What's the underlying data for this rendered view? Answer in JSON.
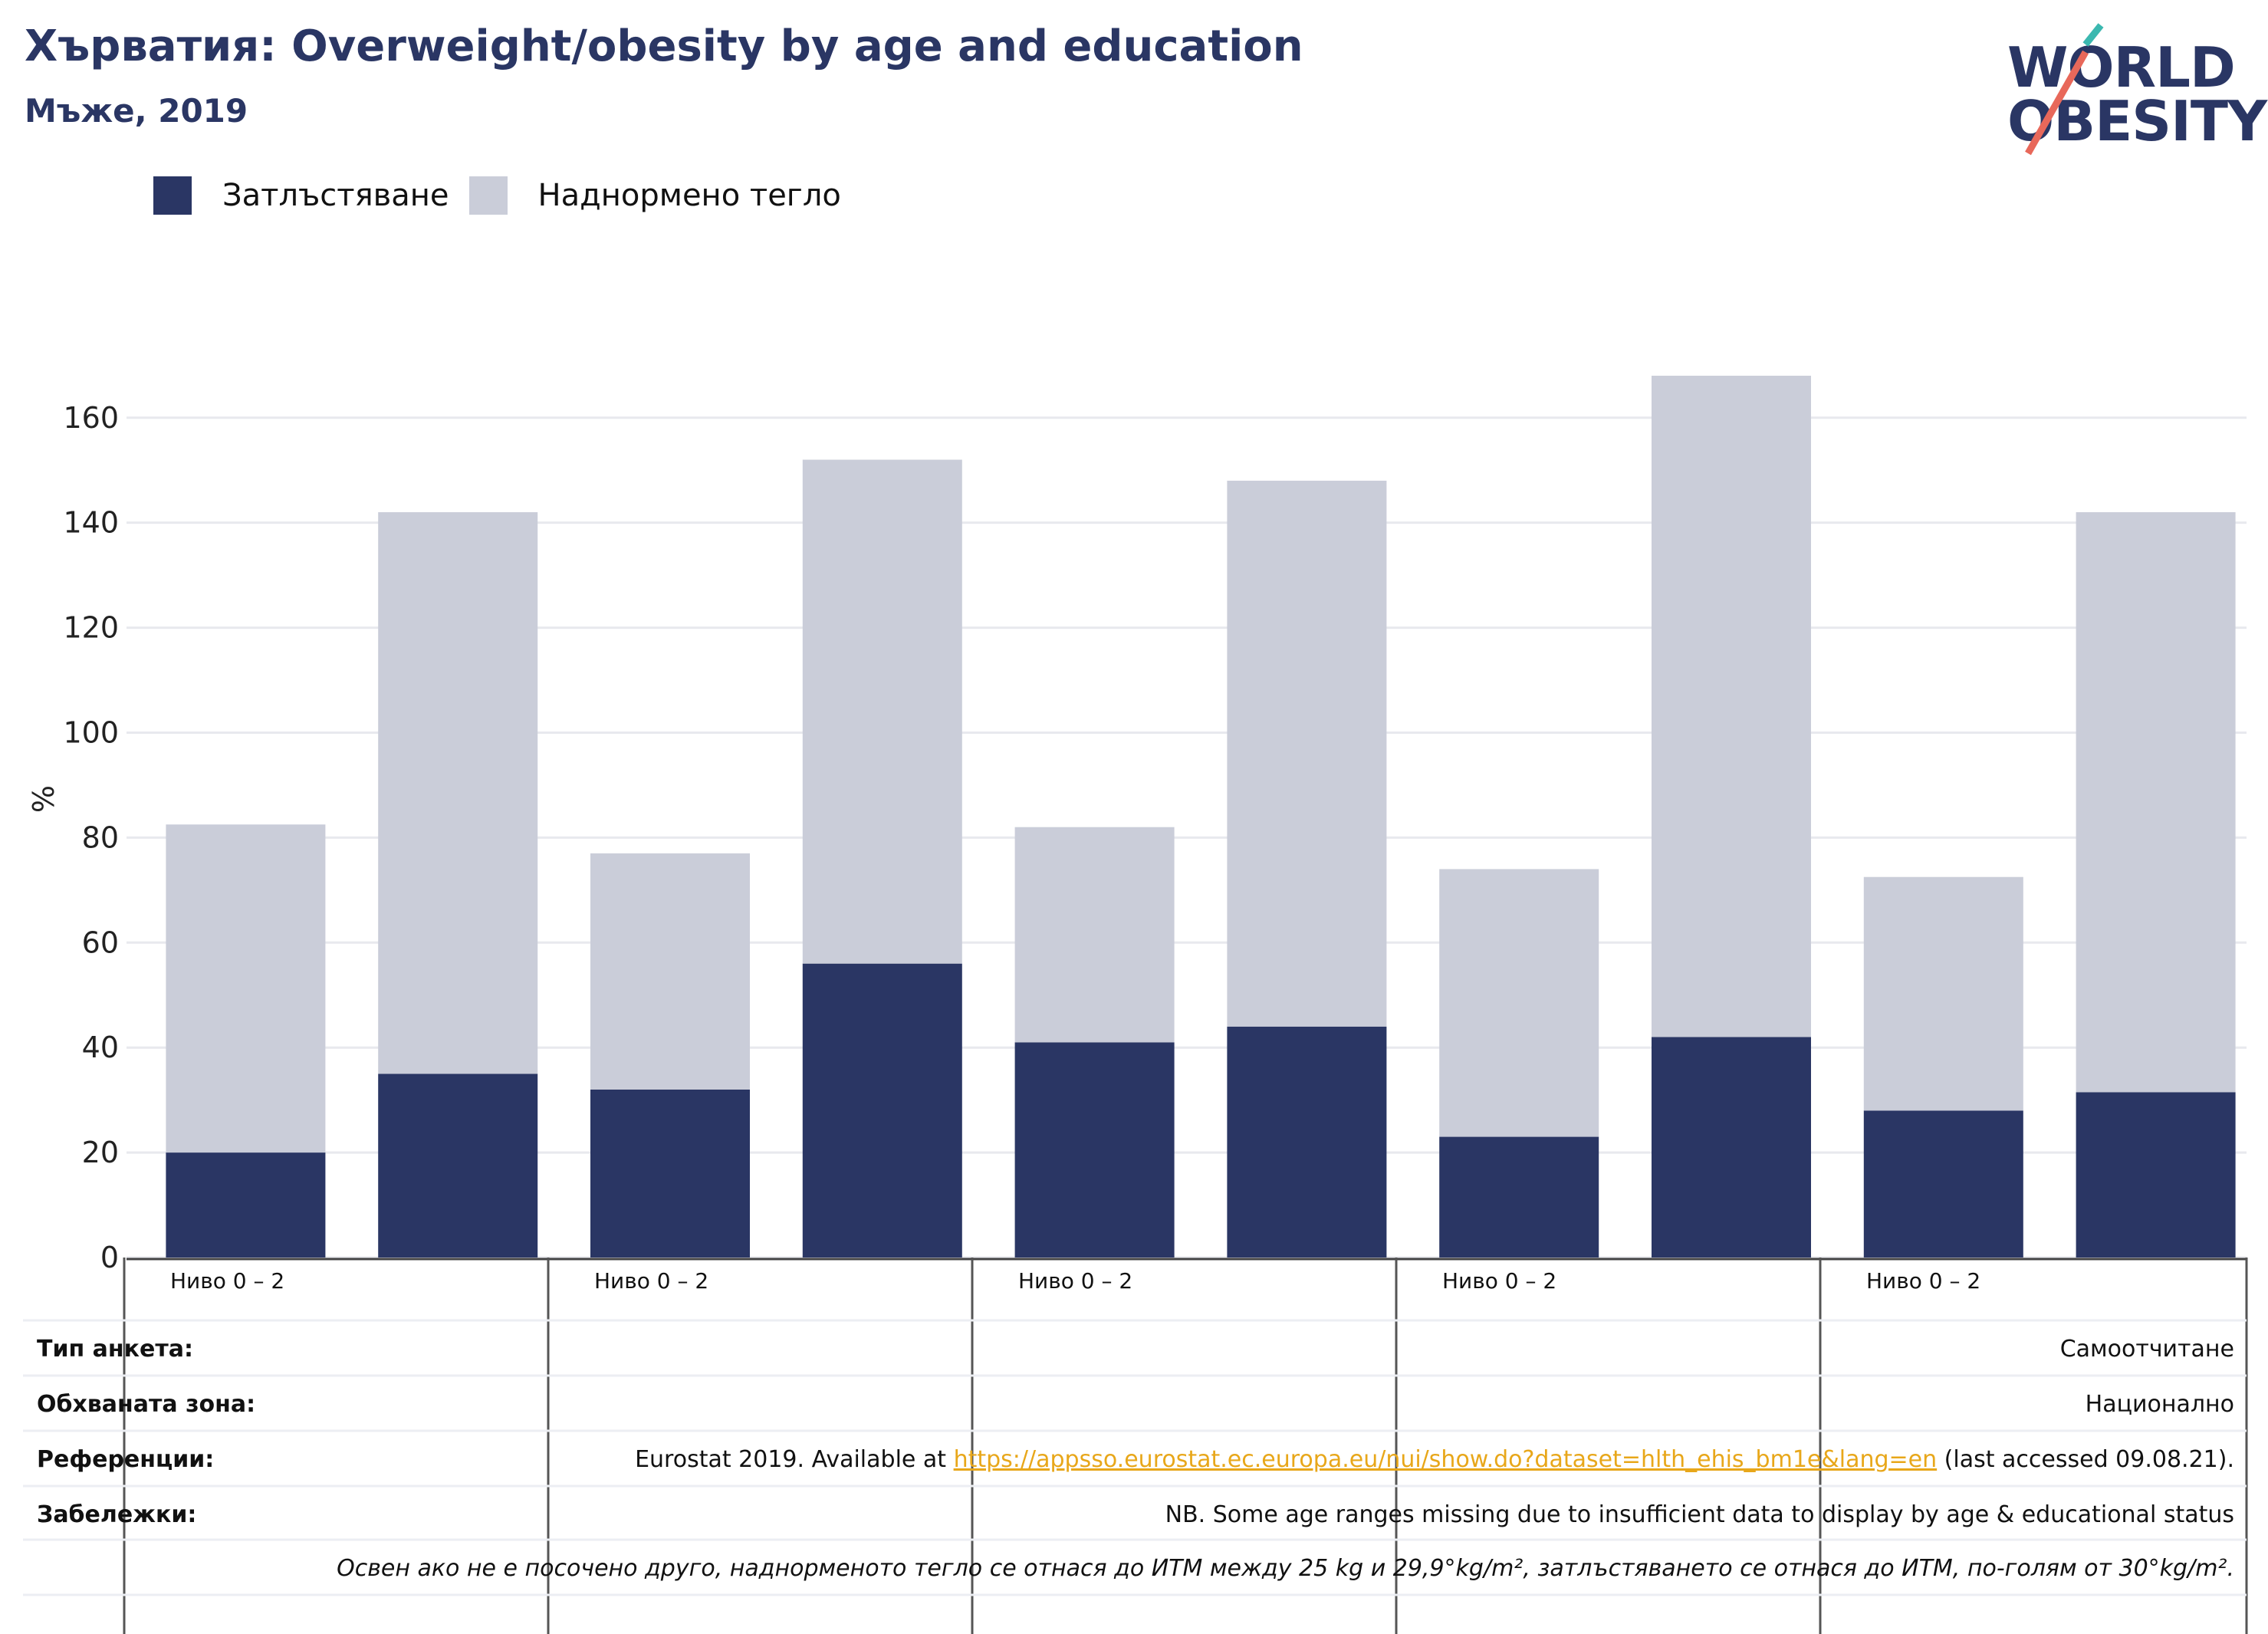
{
  "header": {
    "title": "Хърватия: Overweight/obesity by age and education",
    "subtitle": "Мъже, 2019"
  },
  "logo": {
    "line1": "WORLD",
    "line2": "OBESITY"
  },
  "colors": {
    "obesity": "#2a3664",
    "overweight": "#cacdd9",
    "title": "#2a3664",
    "link": "#e8a71a"
  },
  "chart_data": {
    "type": "bar",
    "stacked": true,
    "ylabel": "%",
    "ylim": [
      0,
      168
    ],
    "yticks": [
      0,
      20,
      40,
      60,
      80,
      100,
      120,
      140,
      160
    ],
    "grid": true,
    "legend_position": "top-left",
    "category_labels": [
      "Ниво 0 – 2",
      "",
      "Ниво 0 – 2",
      "",
      "Ниво 0 – 2",
      "",
      "Ниво 0 – 2",
      "",
      "Ниво 0 – 2",
      ""
    ],
    "series": [
      {
        "name": "Затлъстяване",
        "values": [
          20,
          35,
          32,
          56,
          41,
          44,
          23,
          42,
          28,
          31.5
        ]
      },
      {
        "name": "Наднормено тегло",
        "values": [
          62.5,
          107,
          45,
          96,
          41,
          104,
          51,
          126,
          44.5,
          110.5
        ]
      }
    ]
  },
  "info_table": {
    "survey_type": {
      "label": "Тип анкета:",
      "value": "Самоотчитане"
    },
    "coverage": {
      "label": "Обхваната зона:",
      "value": "Национално"
    },
    "references": {
      "label": "Референции:",
      "prefix": "Eurostat 2019. Available at ",
      "link": "https://appsso.eurostat.ec.europa.eu/nui/show.do?dataset=hlth_ehis_bm1e&lang=en",
      "suffix": " (last accessed 09.08.21)."
    },
    "notes": {
      "label": "Забележки:",
      "value": "NB. Some age ranges missing due to insufficient data to display by age & educational status"
    },
    "footnote": "Освен ако не е посочено друго, наднорменото тегло се отнася до ИТМ между 25 kg и 29,9°kg/m², затлъстяването се отнася до ИТМ, по-голям от 30°kg/m²."
  }
}
